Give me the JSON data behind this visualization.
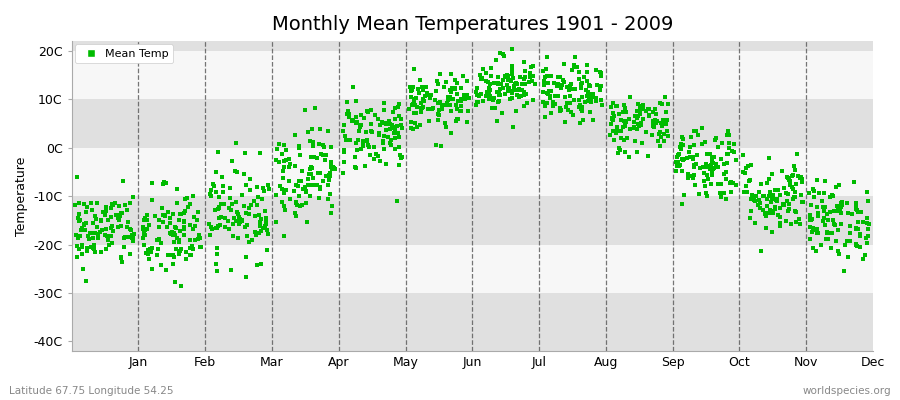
{
  "title": "Monthly Mean Temperatures 1901 - 2009",
  "ylabel": "Temperature",
  "xlabel_months": [
    "Jan",
    "Feb",
    "Mar",
    "Apr",
    "May",
    "Jun",
    "Jul",
    "Aug",
    "Sep",
    "Oct",
    "Nov",
    "Dec"
  ],
  "yticks": [
    -40,
    -30,
    -20,
    -10,
    0,
    10,
    20
  ],
  "ytick_labels": [
    "-40C",
    "-30C",
    "-20C",
    "-10C",
    "0C",
    "10C",
    "20C"
  ],
  "ylim": [
    -42,
    22
  ],
  "xlim": [
    0,
    12
  ],
  "dot_color": "#00BB00",
  "dot_size": 6,
  "background_color": "#ffffff",
  "plot_bg_color": "#ebebeb",
  "band_white": "#f7f7f7",
  "band_gray": "#e0e0e0",
  "title_fontsize": 14,
  "axis_fontsize": 9,
  "footer_left": "Latitude 67.75 Longitude 54.25",
  "footer_right": "worldspecies.org",
  "legend_label": "Mean Temp",
  "monthly_means": [
    -17,
    -18,
    -13,
    -5,
    3,
    9,
    13,
    11,
    5,
    -3,
    -10,
    -15
  ],
  "monthly_stds": [
    4,
    5,
    5,
    5,
    4,
    3,
    3,
    3,
    3,
    4,
    4,
    4
  ],
  "n_years": 109,
  "seed": 42
}
